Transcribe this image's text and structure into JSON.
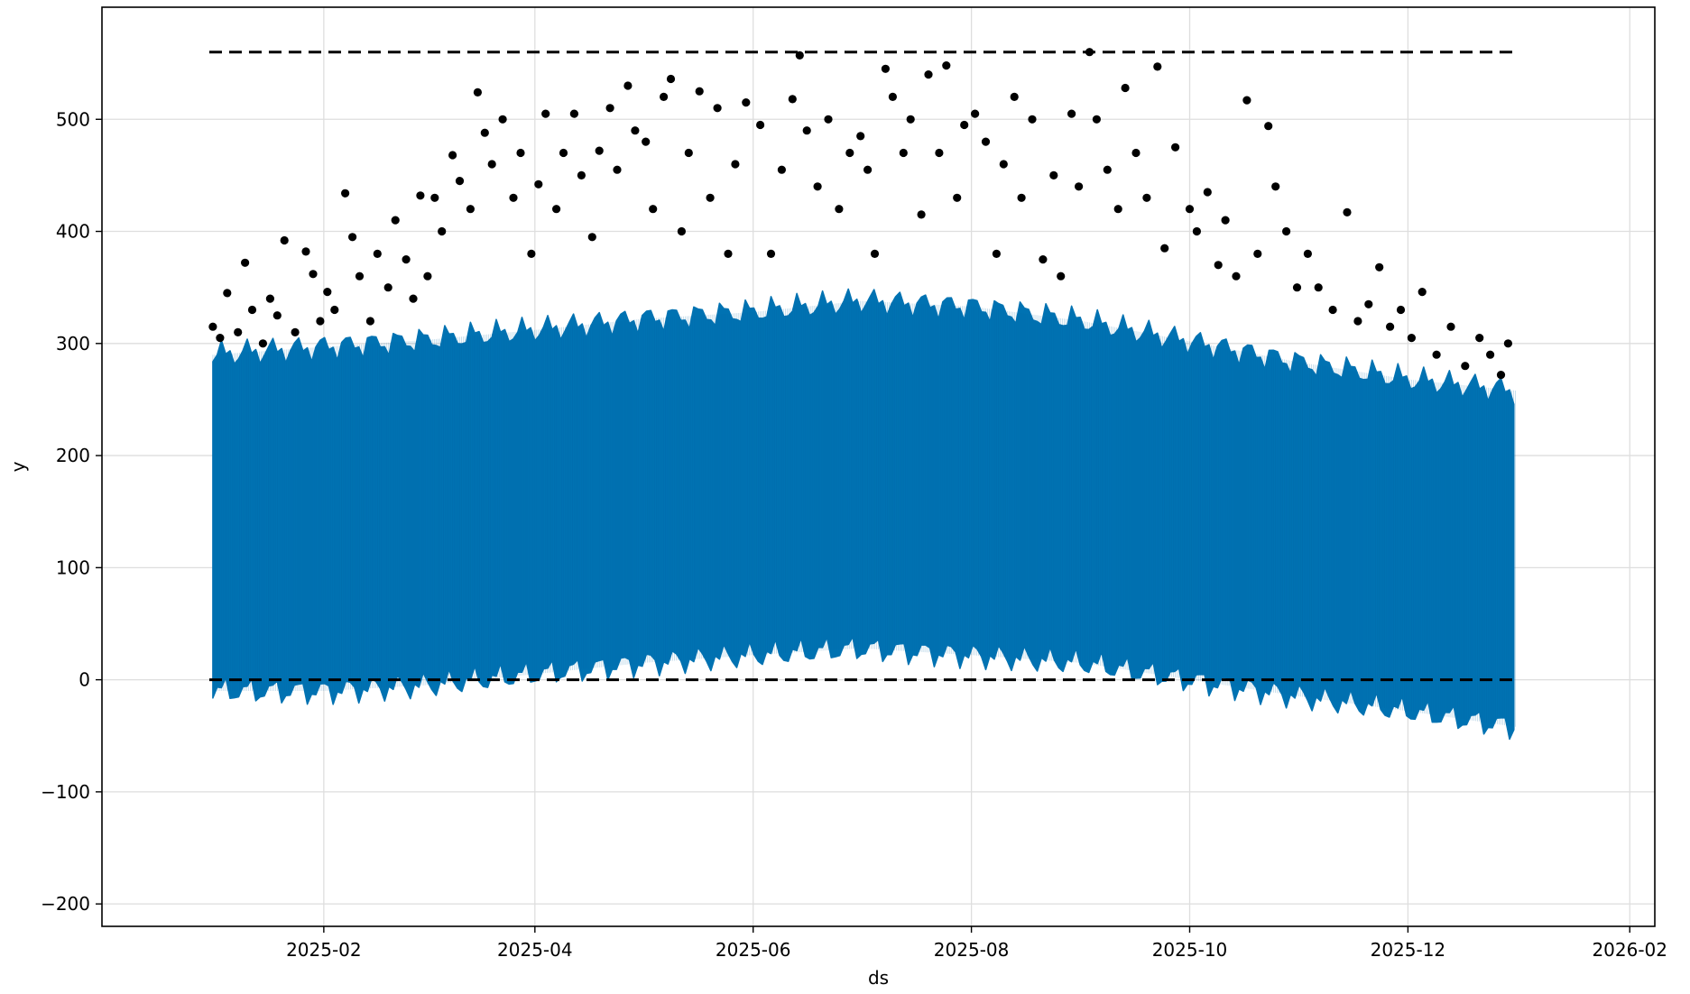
{
  "chart_data": {
    "type": "line",
    "title": "",
    "xlabel": "ds",
    "ylabel": "y",
    "x_axis": {
      "kind": "date",
      "range": [
        "2024-12-01",
        "2026-02-08"
      ],
      "ticks": [
        "2025-02-01",
        "2025-04-01",
        "2025-06-01",
        "2025-08-01",
        "2025-10-01",
        "2025-12-01",
        "2026-02-01"
      ],
      "tick_labels": [
        "2025-02",
        "2025-04",
        "2025-06",
        "2025-08",
        "2025-10",
        "2025-12",
        "2026-02"
      ]
    },
    "y_axis": {
      "range": [
        -220,
        600
      ],
      "ticks": [
        -200,
        -100,
        0,
        100,
        200,
        300,
        400,
        500
      ],
      "tick_labels": [
        "−200",
        "−100",
        "0",
        "100",
        "200",
        "300",
        "400",
        "500"
      ]
    },
    "grid": true,
    "legend": "none",
    "colors": {
      "forecast": "#0072b2",
      "observed": "#000000",
      "cap": "#000000",
      "floor": "#000000"
    },
    "reference_lines": [
      {
        "role": "cap",
        "value": 560,
        "style": "dashed",
        "x_start": "2024-12-31",
        "x_end": "2025-12-31"
      },
      {
        "role": "floor",
        "value": 0,
        "style": "dashed",
        "x_start": "2024-12-31",
        "x_end": "2025-12-31"
      }
    ],
    "series": [
      {
        "role": "forecast_band",
        "style": "band",
        "x": [
          "2025-01-01",
          "2025-02-01",
          "2025-03-01",
          "2025-04-01",
          "2025-05-01",
          "2025-06-01",
          "2025-07-01",
          "2025-08-01",
          "2025-09-01",
          "2025-10-01",
          "2025-11-01",
          "2025-12-01",
          "2025-12-31"
        ],
        "upper": [
          290,
          297,
          303,
          312,
          322,
          328,
          338,
          333,
          320,
          302,
          283,
          268,
          258
        ],
        "lower": [
          -10,
          -10,
          -5,
          5,
          15,
          22,
          28,
          22,
          15,
          0,
          -15,
          -28,
          -42
        ]
      },
      {
        "role": "observed",
        "style": "scatter",
        "points": [
          [
            "2025-01-01",
            315
          ],
          [
            "2025-01-03",
            305
          ],
          [
            "2025-01-05",
            345
          ],
          [
            "2025-01-08",
            310
          ],
          [
            "2025-01-10",
            372
          ],
          [
            "2025-01-12",
            330
          ],
          [
            "2025-01-15",
            300
          ],
          [
            "2025-01-17",
            340
          ],
          [
            "2025-01-19",
            325
          ],
          [
            "2025-01-21",
            392
          ],
          [
            "2025-01-24",
            310
          ],
          [
            "2025-01-27",
            382
          ],
          [
            "2025-01-29",
            362
          ],
          [
            "2025-01-31",
            320
          ],
          [
            "2025-02-02",
            346
          ],
          [
            "2025-02-04",
            330
          ],
          [
            "2025-02-07",
            434
          ],
          [
            "2025-02-09",
            395
          ],
          [
            "2025-02-11",
            360
          ],
          [
            "2025-02-14",
            320
          ],
          [
            "2025-02-16",
            380
          ],
          [
            "2025-02-19",
            350
          ],
          [
            "2025-02-21",
            410
          ],
          [
            "2025-02-24",
            375
          ],
          [
            "2025-02-26",
            340
          ],
          [
            "2025-02-28",
            432
          ],
          [
            "2025-03-02",
            360
          ],
          [
            "2025-03-04",
            430
          ],
          [
            "2025-03-06",
            400
          ],
          [
            "2025-03-09",
            468
          ],
          [
            "2025-03-11",
            445
          ],
          [
            "2025-03-14",
            420
          ],
          [
            "2025-03-16",
            524
          ],
          [
            "2025-03-18",
            488
          ],
          [
            "2025-03-20",
            460
          ],
          [
            "2025-03-23",
            500
          ],
          [
            "2025-03-26",
            430
          ],
          [
            "2025-03-28",
            470
          ],
          [
            "2025-03-31",
            380
          ],
          [
            "2025-04-02",
            442
          ],
          [
            "2025-04-04",
            505
          ],
          [
            "2025-04-07",
            420
          ],
          [
            "2025-04-09",
            470
          ],
          [
            "2025-04-12",
            505
          ],
          [
            "2025-04-14",
            450
          ],
          [
            "2025-04-17",
            395
          ],
          [
            "2025-04-19",
            472
          ],
          [
            "2025-04-22",
            510
          ],
          [
            "2025-04-24",
            455
          ],
          [
            "2025-04-27",
            530
          ],
          [
            "2025-04-29",
            490
          ],
          [
            "2025-05-02",
            480
          ],
          [
            "2025-05-04",
            420
          ],
          [
            "2025-05-07",
            520
          ],
          [
            "2025-05-09",
            536
          ],
          [
            "2025-05-12",
            400
          ],
          [
            "2025-05-14",
            470
          ],
          [
            "2025-05-17",
            525
          ],
          [
            "2025-05-20",
            430
          ],
          [
            "2025-05-22",
            510
          ],
          [
            "2025-05-25",
            380
          ],
          [
            "2025-05-27",
            460
          ],
          [
            "2025-05-30",
            515
          ],
          [
            "2025-06-03",
            495
          ],
          [
            "2025-06-06",
            380
          ],
          [
            "2025-06-09",
            455
          ],
          [
            "2025-06-12",
            518
          ],
          [
            "2025-06-14",
            557
          ],
          [
            "2025-06-16",
            490
          ],
          [
            "2025-06-19",
            440
          ],
          [
            "2025-06-22",
            500
          ],
          [
            "2025-06-25",
            420
          ],
          [
            "2025-06-28",
            470
          ],
          [
            "2025-07-01",
            485
          ],
          [
            "2025-07-03",
            455
          ],
          [
            "2025-07-05",
            380
          ],
          [
            "2025-07-08",
            545
          ],
          [
            "2025-07-10",
            520
          ],
          [
            "2025-07-13",
            470
          ],
          [
            "2025-07-15",
            500
          ],
          [
            "2025-07-18",
            415
          ],
          [
            "2025-07-20",
            540
          ],
          [
            "2025-07-23",
            470
          ],
          [
            "2025-07-25",
            548
          ],
          [
            "2025-07-28",
            430
          ],
          [
            "2025-07-30",
            495
          ],
          [
            "2025-08-02",
            505
          ],
          [
            "2025-08-05",
            480
          ],
          [
            "2025-08-08",
            380
          ],
          [
            "2025-08-10",
            460
          ],
          [
            "2025-08-13",
            520
          ],
          [
            "2025-08-15",
            430
          ],
          [
            "2025-08-18",
            500
          ],
          [
            "2025-08-21",
            375
          ],
          [
            "2025-08-24",
            450
          ],
          [
            "2025-08-26",
            360
          ],
          [
            "2025-08-29",
            505
          ],
          [
            "2025-08-31",
            440
          ],
          [
            "2025-09-03",
            560
          ],
          [
            "2025-09-05",
            500
          ],
          [
            "2025-09-08",
            455
          ],
          [
            "2025-09-11",
            420
          ],
          [
            "2025-09-13",
            528
          ],
          [
            "2025-09-16",
            470
          ],
          [
            "2025-09-19",
            430
          ],
          [
            "2025-09-22",
            547
          ],
          [
            "2025-09-24",
            385
          ],
          [
            "2025-09-27",
            475
          ],
          [
            "2025-10-01",
            420
          ],
          [
            "2025-10-03",
            400
          ],
          [
            "2025-10-06",
            435
          ],
          [
            "2025-10-09",
            370
          ],
          [
            "2025-10-11",
            410
          ],
          [
            "2025-10-14",
            360
          ],
          [
            "2025-10-17",
            517
          ],
          [
            "2025-10-20",
            380
          ],
          [
            "2025-10-23",
            494
          ],
          [
            "2025-10-25",
            440
          ],
          [
            "2025-10-28",
            400
          ],
          [
            "2025-10-31",
            350
          ],
          [
            "2025-11-03",
            380
          ],
          [
            "2025-11-06",
            350
          ],
          [
            "2025-11-10",
            330
          ],
          [
            "2025-11-14",
            417
          ],
          [
            "2025-11-17",
            320
          ],
          [
            "2025-11-20",
            335
          ],
          [
            "2025-11-23",
            368
          ],
          [
            "2025-11-26",
            315
          ],
          [
            "2025-11-29",
            330
          ],
          [
            "2025-12-02",
            305
          ],
          [
            "2025-12-05",
            346
          ],
          [
            "2025-12-09",
            290
          ],
          [
            "2025-12-13",
            315
          ],
          [
            "2025-12-17",
            280
          ],
          [
            "2025-12-21",
            305
          ],
          [
            "2025-12-24",
            290
          ],
          [
            "2025-12-27",
            272
          ],
          [
            "2025-12-29",
            300
          ]
        ]
      }
    ]
  }
}
